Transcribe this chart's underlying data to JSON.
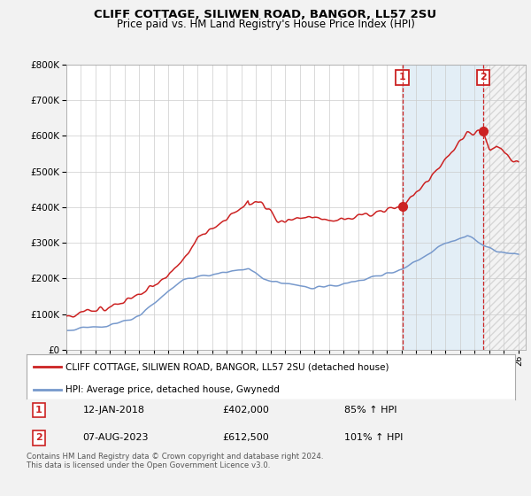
{
  "title": "CLIFF COTTAGE, SILIWEN ROAD, BANGOR, LL57 2SU",
  "subtitle": "Price paid vs. HM Land Registry's House Price Index (HPI)",
  "legend_line1": "CLIFF COTTAGE, SILIWEN ROAD, BANGOR, LL57 2SU (detached house)",
  "legend_line2": "HPI: Average price, detached house, Gwynedd",
  "annotation1_label": "1",
  "annotation1_date": "12-JAN-2018",
  "annotation1_price": "£402,000",
  "annotation1_hpi": "85% ↑ HPI",
  "annotation2_label": "2",
  "annotation2_date": "07-AUG-2023",
  "annotation2_price": "£612,500",
  "annotation2_hpi": "101% ↑ HPI",
  "footer": "Contains HM Land Registry data © Crown copyright and database right 2024.\nThis data is licensed under the Open Government Licence v3.0.",
  "red_color": "#cc2222",
  "blue_color": "#7799cc",
  "annotation_color": "#cc2222",
  "background_color": "#f2f2f2",
  "plot_bg_color": "#ffffff",
  "ylim": [
    0,
    800000
  ],
  "xlim_left": 1995.0,
  "xlim_right": 2026.5,
  "sale1_x": 2018.04,
  "sale1_y": 402000,
  "sale2_x": 2023.59,
  "sale2_y": 612500,
  "title_fontsize": 9.5,
  "subtitle_fontsize": 8.5
}
